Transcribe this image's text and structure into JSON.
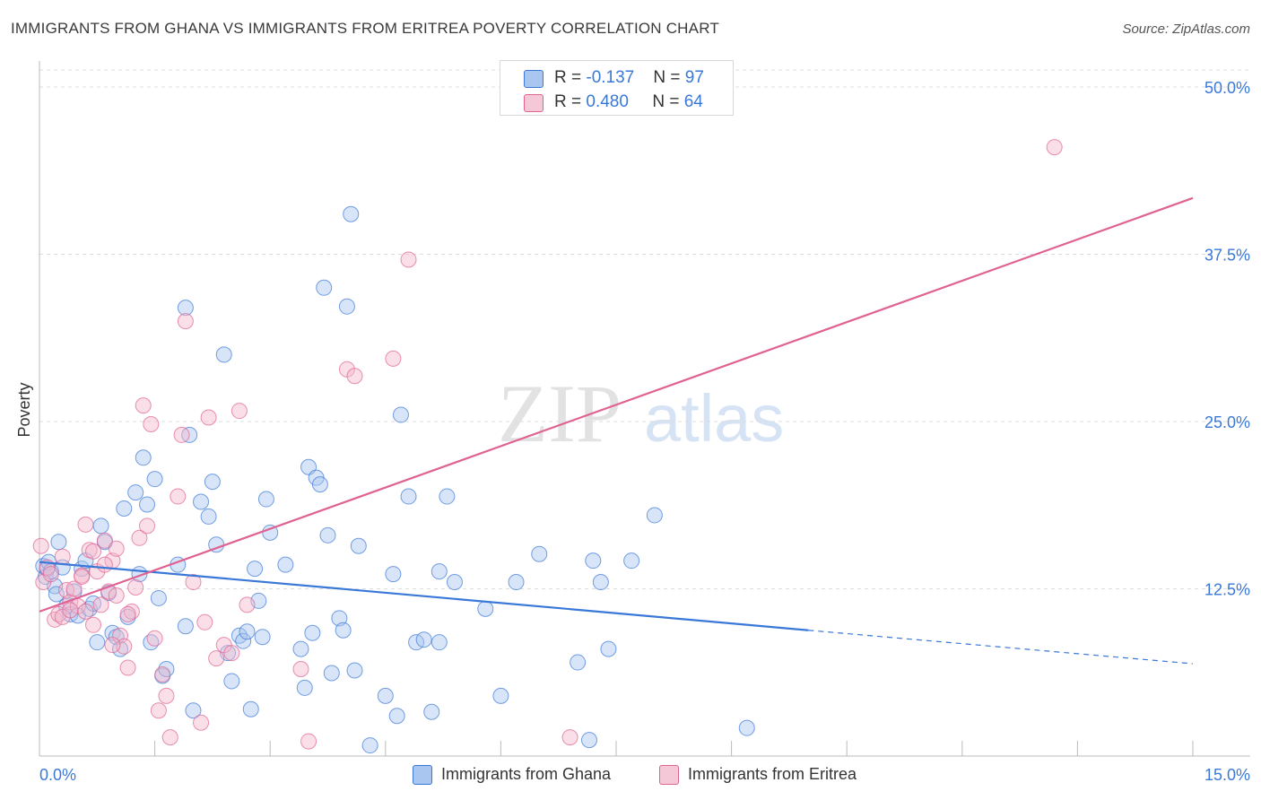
{
  "header": {
    "title": "IMMIGRANTS FROM GHANA VS IMMIGRANTS FROM ERITREA POVERTY CORRELATION CHART",
    "source": "Source: ZipAtlas.com"
  },
  "watermark": {
    "zip": "ZIP",
    "atlas": "atlas"
  },
  "legend_top": [
    {
      "r_label": "R = ",
      "r_value": "-0.137",
      "n_label": "N = ",
      "n_value": "97",
      "color": "#a9c6f0"
    },
    {
      "r_label": "R = ",
      "r_value": "0.480",
      "n_label": "N = ",
      "n_value": "64",
      "color": "#f5b8cd"
    }
  ],
  "legend_bottom": [
    {
      "label": "Immigrants from Ghana",
      "color": "#a9c6f0"
    },
    {
      "label": "Immigrants from Eritrea",
      "color": "#f5b8cd"
    }
  ],
  "chart_data": {
    "type": "scatter",
    "title": "IMMIGRANTS FROM GHANA VS IMMIGRANTS FROM ERITREA POVERTY CORRELATION CHART",
    "xlabel": "",
    "ylabel": "Poverty",
    "xlim": [
      0,
      15
    ],
    "ylim": [
      0,
      50
    ],
    "x_tick_labels": [
      "0.0%",
      "15.0%"
    ],
    "y_ticks": [
      12.5,
      25.0,
      37.5,
      50.0
    ],
    "y_tick_labels": [
      "12.5%",
      "25.0%",
      "37.5%",
      "50.0%"
    ],
    "grid": "horizontal dashed",
    "legend_placement": "top-center and bottom",
    "series": [
      {
        "name": "Immigrants from Ghana",
        "color": "#3a78d8",
        "fill": "#a9c6f0",
        "trend": {
          "x0": 0,
          "y0": 14.5,
          "x1": 10.0,
          "y1": 9.4,
          "dashed_to_x": 15.0,
          "dashed_to_y": 6.9
        },
        "points": [
          [
            0.05,
            14.2
          ],
          [
            0.08,
            13.4
          ],
          [
            0.1,
            14.0
          ],
          [
            0.12,
            14.5
          ],
          [
            0.15,
            13.8
          ],
          [
            0.2,
            12.7
          ],
          [
            0.22,
            12.1
          ],
          [
            0.25,
            16.0
          ],
          [
            0.3,
            14.1
          ],
          [
            0.35,
            11.2
          ],
          [
            0.4,
            10.6
          ],
          [
            0.45,
            12.3
          ],
          [
            0.5,
            10.5
          ],
          [
            0.55,
            14.0
          ],
          [
            0.6,
            14.6
          ],
          [
            0.65,
            11.0
          ],
          [
            0.7,
            11.4
          ],
          [
            0.75,
            8.5
          ],
          [
            0.8,
            17.2
          ],
          [
            0.85,
            16.0
          ],
          [
            0.9,
            12.2
          ],
          [
            0.95,
            9.2
          ],
          [
            1.0,
            8.9
          ],
          [
            1.05,
            8.0
          ],
          [
            1.1,
            18.5
          ],
          [
            1.15,
            10.4
          ],
          [
            1.25,
            19.7
          ],
          [
            1.3,
            13.6
          ],
          [
            1.35,
            22.3
          ],
          [
            1.4,
            18.8
          ],
          [
            1.45,
            8.5
          ],
          [
            1.5,
            20.7
          ],
          [
            1.55,
            11.8
          ],
          [
            1.6,
            6.0
          ],
          [
            1.65,
            6.5
          ],
          [
            1.8,
            14.3
          ],
          [
            1.9,
            9.7
          ],
          [
            1.95,
            24.0
          ],
          [
            2.0,
            3.4
          ],
          [
            2.1,
            19.0
          ],
          [
            2.2,
            17.9
          ],
          [
            2.25,
            20.5
          ],
          [
            2.3,
            15.8
          ],
          [
            2.4,
            30.0
          ],
          [
            2.45,
            7.7
          ],
          [
            2.5,
            5.6
          ],
          [
            2.6,
            9.0
          ],
          [
            2.65,
            8.6
          ],
          [
            2.7,
            9.3
          ],
          [
            2.75,
            3.5
          ],
          [
            2.8,
            14.0
          ],
          [
            2.85,
            11.6
          ],
          [
            2.9,
            8.9
          ],
          [
            2.95,
            19.2
          ],
          [
            3.0,
            16.7
          ],
          [
            3.2,
            14.3
          ],
          [
            3.4,
            8.0
          ],
          [
            3.45,
            5.1
          ],
          [
            3.5,
            21.6
          ],
          [
            3.55,
            9.2
          ],
          [
            3.6,
            20.8
          ],
          [
            3.65,
            20.3
          ],
          [
            3.7,
            35.0
          ],
          [
            3.75,
            16.5
          ],
          [
            3.8,
            6.2
          ],
          [
            3.9,
            10.3
          ],
          [
            3.95,
            9.4
          ],
          [
            4.0,
            33.6
          ],
          [
            4.05,
            40.5
          ],
          [
            4.1,
            6.4
          ],
          [
            4.15,
            15.7
          ],
          [
            4.3,
            0.8
          ],
          [
            4.5,
            4.5
          ],
          [
            4.6,
            13.6
          ],
          [
            4.65,
            3.0
          ],
          [
            4.7,
            25.5
          ],
          [
            4.8,
            19.4
          ],
          [
            4.9,
            8.5
          ],
          [
            5.0,
            8.7
          ],
          [
            5.1,
            3.3
          ],
          [
            5.2,
            8.5
          ],
          [
            5.3,
            19.4
          ],
          [
            5.2,
            13.8
          ],
          [
            5.4,
            13.0
          ],
          [
            5.8,
            11.0
          ],
          [
            6.0,
            4.5
          ],
          [
            6.2,
            13.0
          ],
          [
            6.5,
            15.1
          ],
          [
            7.0,
            7.0
          ],
          [
            7.15,
            1.2
          ],
          [
            7.2,
            14.6
          ],
          [
            7.3,
            13.0
          ],
          [
            7.4,
            8.0
          ],
          [
            7.7,
            14.6
          ],
          [
            8.0,
            18.0
          ],
          [
            9.2,
            2.1
          ],
          [
            1.9,
            33.5
          ]
        ]
      },
      {
        "name": "Immigrants from Eritrea",
        "color": "#e06292",
        "fill": "#f5b8cd",
        "trend": {
          "x0": 0,
          "y0": 10.8,
          "x1": 15.0,
          "y1": 41.7
        },
        "points": [
          [
            0.02,
            15.7
          ],
          [
            0.05,
            13.0
          ],
          [
            0.1,
            14.1
          ],
          [
            0.15,
            13.6
          ],
          [
            0.2,
            10.2
          ],
          [
            0.25,
            10.6
          ],
          [
            0.3,
            10.4
          ],
          [
            0.35,
            12.4
          ],
          [
            0.4,
            11.5
          ],
          [
            0.45,
            12.5
          ],
          [
            0.5,
            11.2
          ],
          [
            0.55,
            13.5
          ],
          [
            0.6,
            17.3
          ],
          [
            0.65,
            15.4
          ],
          [
            0.7,
            15.3
          ],
          [
            0.75,
            13.8
          ],
          [
            0.8,
            11.3
          ],
          [
            0.85,
            16.1
          ],
          [
            0.9,
            12.3
          ],
          [
            0.95,
            14.6
          ],
          [
            1.0,
            15.5
          ],
          [
            1.05,
            9.0
          ],
          [
            1.1,
            8.2
          ],
          [
            1.15,
            6.6
          ],
          [
            1.2,
            10.8
          ],
          [
            1.25,
            12.6
          ],
          [
            1.3,
            16.3
          ],
          [
            1.35,
            26.2
          ],
          [
            1.4,
            17.2
          ],
          [
            1.45,
            24.8
          ],
          [
            1.5,
            8.8
          ],
          [
            1.55,
            3.4
          ],
          [
            1.6,
            6.1
          ],
          [
            1.65,
            4.5
          ],
          [
            1.7,
            1.4
          ],
          [
            1.8,
            19.4
          ],
          [
            1.85,
            24.0
          ],
          [
            1.9,
            32.5
          ],
          [
            2.0,
            13.0
          ],
          [
            2.1,
            2.5
          ],
          [
            2.15,
            10.0
          ],
          [
            2.2,
            25.3
          ],
          [
            2.3,
            7.3
          ],
          [
            2.4,
            8.3
          ],
          [
            2.5,
            7.7
          ],
          [
            2.6,
            25.8
          ],
          [
            2.7,
            11.3
          ],
          [
            3.4,
            6.5
          ],
          [
            3.5,
            1.1
          ],
          [
            4.0,
            28.9
          ],
          [
            4.1,
            28.4
          ],
          [
            4.6,
            29.7
          ],
          [
            4.8,
            37.1
          ],
          [
            6.9,
            1.4
          ],
          [
            13.2,
            45.5
          ],
          [
            0.4,
            10.9
          ],
          [
            0.55,
            13.4
          ],
          [
            0.7,
            9.8
          ],
          [
            1.0,
            12.0
          ],
          [
            1.15,
            10.6
          ],
          [
            0.85,
            14.3
          ],
          [
            0.6,
            10.8
          ],
          [
            0.95,
            8.3
          ],
          [
            0.3,
            14.9
          ]
        ]
      }
    ]
  }
}
